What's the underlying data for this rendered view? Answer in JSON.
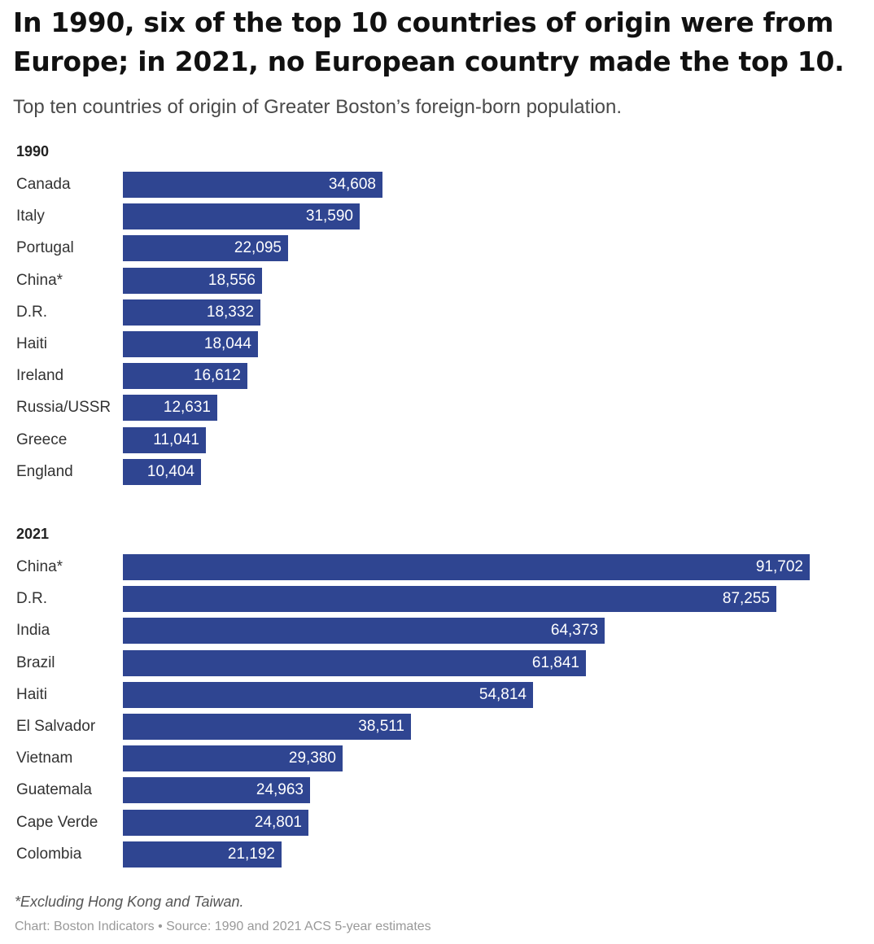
{
  "title": "In 1990, six of the top 10 countries of origin were from Europe; in 2021, no European country made the top 10.",
  "subtitle": "Top ten countries of origin of Greater Boston’s foreign-born population.",
  "chart_data": [
    {
      "type": "bar",
      "orientation": "horizontal",
      "label": "1990",
      "categories": [
        "Canada",
        "Italy",
        "Portugal",
        "China*",
        "D.R.",
        "Haiti",
        "Ireland",
        "Russia/USSR",
        "Greece",
        "England"
      ],
      "values": [
        34608,
        31590,
        22095,
        18556,
        18332,
        18044,
        16612,
        12631,
        11041,
        10404
      ],
      "value_labels": [
        "34,608",
        "31,590",
        "22,095",
        "18,556",
        "18,332",
        "18,044",
        "16,612",
        "12,631",
        "11,041",
        "10,404"
      ],
      "color": "#2f4591",
      "xlim": [
        0,
        91702
      ]
    },
    {
      "type": "bar",
      "orientation": "horizontal",
      "label": "2021",
      "categories": [
        "China*",
        "D.R.",
        "India",
        "Brazil",
        "Haiti",
        "El Salvador",
        "Vietnam",
        "Guatemala",
        "Cape Verde",
        "Colombia"
      ],
      "values": [
        91702,
        87255,
        64373,
        61841,
        54814,
        38511,
        29380,
        24963,
        24801,
        21192
      ],
      "value_labels": [
        "91,702",
        "87,255",
        "64,373",
        "61,841",
        "54,814",
        "38,511",
        "29,380",
        "24,963",
        "24,801",
        "21,192"
      ],
      "color": "#2f4591",
      "xlim": [
        0,
        91702
      ]
    }
  ],
  "footnote": "*Excluding Hong Kong and Taiwan.",
  "credit": "Chart: Boston Indicators • Source: 1990 and 2021 ACS 5-year estimates"
}
